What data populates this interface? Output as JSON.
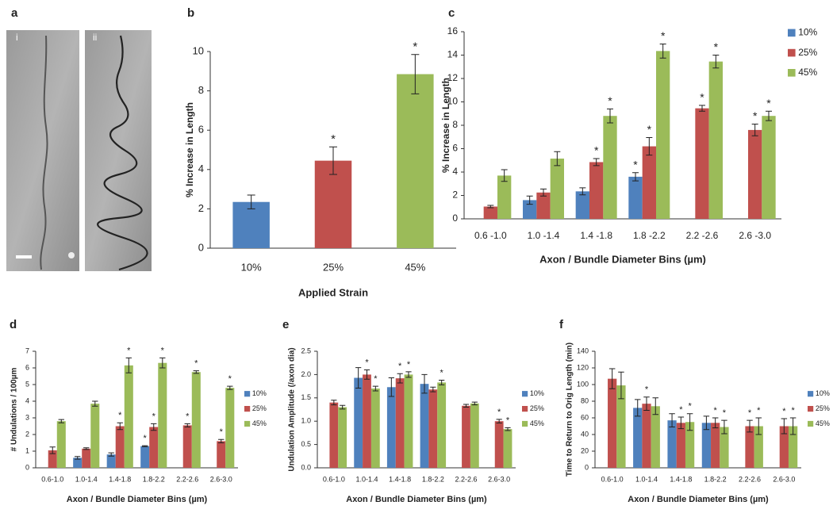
{
  "panel_a": {
    "panel_label": "a",
    "images": [
      {
        "label": "i"
      },
      {
        "label": "ii"
      }
    ]
  },
  "chart_data": [
    {
      "type": "bar",
      "panel_label": "b",
      "x_label": "Applied Strain",
      "y_label": "% Increase in Length",
      "categories": [
        "10%",
        "25%",
        "45%"
      ],
      "values": [
        2.35,
        4.45,
        8.85
      ],
      "errors": [
        0.35,
        0.7,
        1.0
      ],
      "colors": [
        "#4f81bd",
        "#c0504d",
        "#9bbb59"
      ],
      "significant": [
        false,
        true,
        true
      ],
      "significance_marker": "*",
      "ylim": [
        0,
        10
      ],
      "yticks": [
        0,
        2,
        4,
        6,
        8,
        10
      ]
    },
    {
      "type": "grouped_bar",
      "panel_label": "c",
      "x_label": "Axon / Bundle Diameter Bins (µm)",
      "y_label": "% Increase in Length",
      "categories": [
        "0.6 -1.0",
        "1.0 -1.4",
        "1.4 -1.8",
        "1.8 -2.2",
        "2.2 -2.6",
        "2.6 -3.0"
      ],
      "series": [
        {
          "name": "10%",
          "color": "#4f81bd",
          "values": [
            null,
            1.6,
            2.35,
            3.6,
            null,
            null
          ],
          "errors": [
            null,
            0.35,
            0.3,
            0.35,
            null,
            null
          ],
          "significant": [
            false,
            false,
            false,
            true,
            false,
            false
          ]
        },
        {
          "name": "25%",
          "color": "#c0504d",
          "values": [
            1.05,
            2.25,
            4.85,
            6.2,
            9.45,
            7.6
          ],
          "errors": [
            0.1,
            0.3,
            0.3,
            0.75,
            0.25,
            0.5
          ],
          "significant": [
            false,
            false,
            true,
            true,
            true,
            true
          ]
        },
        {
          "name": "45%",
          "color": "#9bbb59",
          "values": [
            3.7,
            5.15,
            8.8,
            14.35,
            13.45,
            8.8
          ],
          "errors": [
            0.5,
            0.6,
            0.6,
            0.6,
            0.55,
            0.4
          ],
          "significant": [
            false,
            false,
            true,
            true,
            true,
            true
          ]
        }
      ],
      "significance_marker": "*",
      "legend": "upper right",
      "ylim": [
        0,
        16
      ],
      "yticks": [
        0,
        2,
        4,
        6,
        8,
        10,
        12,
        14,
        16
      ]
    },
    {
      "type": "grouped_bar",
      "panel_label": "d",
      "x_label": "Axon / Bundle Diameter Bins (µm)",
      "y_label": "# Undulations / 100µm",
      "categories": [
        "0.6-1.0",
        "1.0-1.4",
        "1.4-1.8",
        "1.8-2.2",
        "2.2-2.6",
        "2.6-3.0"
      ],
      "series": [
        {
          "name": "10%",
          "color": "#4f81bd",
          "values": [
            null,
            0.6,
            0.8,
            1.3,
            null,
            null
          ],
          "errors": [
            null,
            0.08,
            0.1,
            0.03,
            null,
            null
          ],
          "significant": [
            false,
            false,
            false,
            true,
            false,
            false
          ]
        },
        {
          "name": "25%",
          "color": "#c0504d",
          "values": [
            1.05,
            1.15,
            2.5,
            2.45,
            2.55,
            1.6
          ],
          "errors": [
            0.2,
            0.05,
            0.2,
            0.2,
            0.1,
            0.1
          ],
          "significant": [
            false,
            false,
            true,
            true,
            true,
            true
          ]
        },
        {
          "name": "45%",
          "color": "#9bbb59",
          "values": [
            2.8,
            3.85,
            6.15,
            6.3,
            5.75,
            4.8
          ],
          "errors": [
            0.1,
            0.15,
            0.45,
            0.3,
            0.08,
            0.1
          ],
          "significant": [
            false,
            false,
            true,
            true,
            true,
            true
          ]
        }
      ],
      "significance_marker": "*",
      "legend": "center right",
      "ylim": [
        0,
        7
      ],
      "yticks": [
        0,
        1,
        2,
        3,
        4,
        5,
        6,
        7
      ]
    },
    {
      "type": "grouped_bar",
      "panel_label": "e",
      "x_label": "Axon / Bundle Diameter Bins (µm)",
      "y_label": "Undulation Amplitude (/axon dia)",
      "categories": [
        "0.6-1.0",
        "1.0-1.4",
        "1.4-1.8",
        "1.8-2.2",
        "2.2-2.6",
        "2.6-3.0"
      ],
      "series": [
        {
          "name": "10%",
          "color": "#4f81bd",
          "values": [
            null,
            1.93,
            1.73,
            1.8,
            null,
            null
          ],
          "errors": [
            null,
            0.22,
            0.2,
            0.2,
            null,
            null
          ],
          "significant": [
            false,
            false,
            false,
            false,
            false,
            false
          ]
        },
        {
          "name": "25%",
          "color": "#c0504d",
          "values": [
            1.4,
            2.0,
            1.92,
            1.68,
            1.33,
            1.0
          ],
          "errors": [
            0.05,
            0.1,
            0.1,
            0.05,
            0.03,
            0.04
          ],
          "significant": [
            false,
            true,
            true,
            false,
            false,
            true
          ]
        },
        {
          "name": "45%",
          "color": "#9bbb59",
          "values": [
            1.3,
            1.7,
            2.0,
            1.83,
            1.38,
            0.83
          ],
          "errors": [
            0.04,
            0.05,
            0.06,
            0.05,
            0.03,
            0.03
          ],
          "significant": [
            false,
            true,
            true,
            true,
            false,
            true
          ]
        }
      ],
      "significance_marker": "*",
      "legend": "center right",
      "ylim": [
        0,
        2.5
      ],
      "yticks": [
        {
          "value": 0,
          "label": "0.0"
        },
        0.5,
        {
          "value": 1,
          "label": "1.0"
        },
        1.5,
        {
          "value": 2,
          "label": "2.0"
        },
        2.5
      ]
    },
    {
      "type": "grouped_bar",
      "panel_label": "f",
      "x_label": "Axon / Bundle Diameter Bins (µm)",
      "y_label": "Time to Return to Orig Length (min)",
      "categories": [
        "0.6-1.0",
        "1.0-1.4",
        "1.4-1.8",
        "1.8-2.2",
        "2.2-2.6",
        "2.6-3.0"
      ],
      "series": [
        {
          "name": "10%",
          "color": "#4f81bd",
          "values": [
            null,
            72,
            57,
            54,
            null,
            null
          ],
          "errors": [
            null,
            10,
            8,
            8,
            null,
            null
          ],
          "significant": [
            false,
            false,
            false,
            false,
            false,
            false
          ]
        },
        {
          "name": "25%",
          "color": "#c0504d",
          "values": [
            107,
            77,
            54,
            54,
            50,
            50
          ],
          "errors": [
            12,
            8,
            7,
            6,
            7,
            9
          ],
          "significant": [
            false,
            true,
            true,
            true,
            true,
            true
          ]
        },
        {
          "name": "45%",
          "color": "#9bbb59",
          "values": [
            99,
            74,
            55,
            49,
            50,
            50
          ],
          "errors": [
            16,
            10,
            10,
            8,
            10,
            10
          ],
          "significant": [
            false,
            false,
            true,
            true,
            true,
            true
          ]
        }
      ],
      "significance_marker": "*",
      "legend": "center right",
      "ylim": [
        0,
        140
      ],
      "yticks": [
        0,
        20,
        40,
        60,
        80,
        100,
        120,
        140
      ]
    }
  ]
}
